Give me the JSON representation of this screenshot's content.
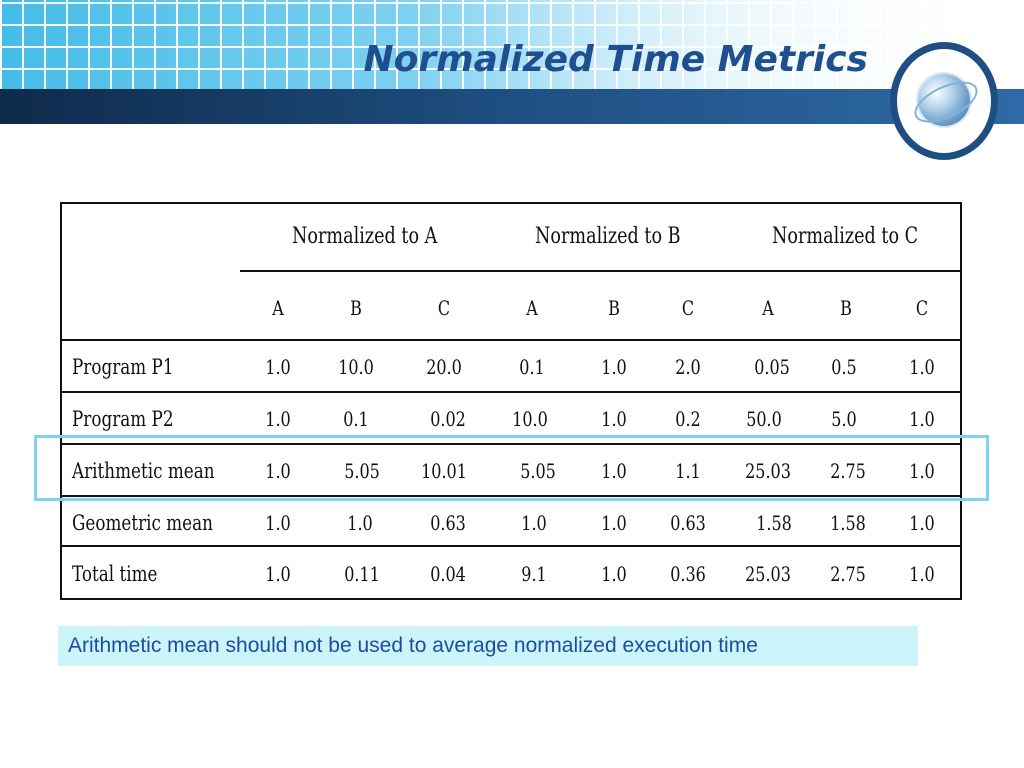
{
  "slide": {
    "title": "Normalized Time Metrics"
  },
  "table": {
    "groups": [
      "Normalized to A",
      "Normalized to B",
      "Normalized to C"
    ],
    "subheaders": [
      "A",
      "B",
      "C",
      "A",
      "B",
      "C",
      "A",
      "B",
      "C"
    ],
    "rows": [
      {
        "label": "Program P1",
        "values": [
          "1.0",
          "10.0",
          "20.0",
          "0.1",
          "1.0",
          "2.0",
          "0.05",
          "0.5",
          "1.0"
        ]
      },
      {
        "label": "Program P2",
        "values": [
          "1.0",
          "0.1",
          "0.02",
          "10.0",
          "1.0",
          "0.2",
          "50.0",
          "5.0",
          "1.0"
        ]
      },
      {
        "label": "Arithmetic mean",
        "values": [
          "1.0",
          "5.05",
          "10.01",
          "5.05",
          "1.0",
          "1.1",
          "25.03",
          "2.75",
          "1.0"
        ]
      },
      {
        "label": "Geometric mean",
        "values": [
          "1.0",
          "1.0",
          "0.63",
          "1.0",
          "1.0",
          "0.63",
          "1.58",
          "1.58",
          "1.0"
        ]
      },
      {
        "label": "Total time",
        "values": [
          "1.0",
          "0.11",
          "0.04",
          "9.1",
          "1.0",
          "0.36",
          "25.03",
          "2.75",
          "1.0"
        ]
      }
    ]
  },
  "note": {
    "text": "Arithmetic mean should not be used to average normalized execution time"
  },
  "colors": {
    "title": "#1f4f8f",
    "banner_bar": "#1f4f82",
    "highlight": "#7fd3ea",
    "note_bg": "#cdf3fb",
    "note_text": "#1a4fa0"
  }
}
